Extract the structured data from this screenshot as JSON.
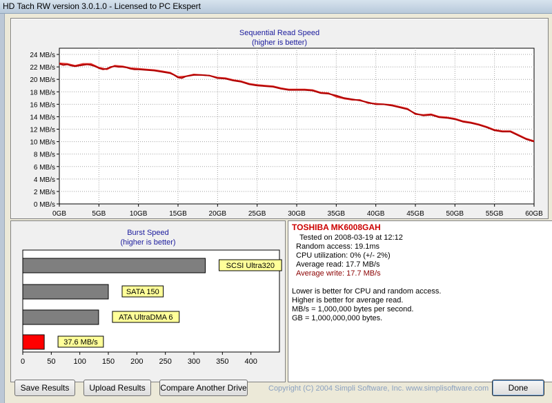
{
  "window": {
    "title": "HD Tach RW version 3.0.1.0 - Licensed to PC Ekspert"
  },
  "colors": {
    "read_line": "#b00000",
    "write_line": "#e0302a",
    "burst_gray": "#7f7f7f",
    "burst_highlight": "#ff0000",
    "label_bg": "#ffff99",
    "title_blue": "#1a1a9c",
    "drive_red": "#cc0000",
    "write_text": "#8b0000"
  },
  "seq_chart": {
    "title": "Sequential Read Speed",
    "subtitle": "(higher is better)"
  },
  "burst_chart": {
    "title": "Burst Speed",
    "subtitle": "(higher is better)"
  },
  "info": {
    "drive": "TOSHIBA MK6008GAH",
    "tested": "Tested on 2008-03-19 at 12:12",
    "random_access": "Random access: 19.1ms",
    "cpu": "CPU utilization: 0% (+/- 2%)",
    "avg_read": "Average read: 17.7 MB/s",
    "avg_write": "Average write: 17.7 MB/s",
    "notes": [
      "Lower is better for CPU and random access.",
      "Higher is better for average read.",
      "MB/s = 1,000,000 bytes per second.",
      "GB = 1,000,000,000 bytes."
    ]
  },
  "buttons": {
    "save": "Save Results",
    "upload": "Upload Results",
    "compare": "Compare Another Drive",
    "done": "Done"
  },
  "copyright": "Copyright (C) 2004 Simpli Software, Inc. www.simplisoftware.com",
  "chart_data": [
    {
      "type": "line",
      "title": "Sequential Read Speed",
      "subtitle": "(higher is better)",
      "xlabel": "",
      "ylabel": "",
      "xlim": [
        0,
        60
      ],
      "ylim": [
        0,
        25
      ],
      "x_ticks": [
        "0GB",
        "5GB",
        "10GB",
        "15GB",
        "20GB",
        "25GB",
        "30GB",
        "35GB",
        "40GB",
        "45GB",
        "50GB",
        "55GB",
        "60GB"
      ],
      "y_ticks": [
        "0 MB/s",
        "2 MB/s",
        "4 MB/s",
        "6 MB/s",
        "8 MB/s",
        "10 MB/s",
        "12 MB/s",
        "14 MB/s",
        "16 MB/s",
        "18 MB/s",
        "20 MB/s",
        "22 MB/s",
        "24 MB/s"
      ],
      "grid": true,
      "series": [
        {
          "name": "read",
          "x": [
            0,
            0.5,
            1,
            1.5,
            2,
            2.5,
            3,
            3.5,
            4,
            4.5,
            5,
            5.5,
            6,
            6.5,
            7,
            7.5,
            8,
            8.5,
            9,
            9.5,
            10,
            11,
            12,
            13,
            14,
            14.5,
            15,
            15.5,
            16,
            17,
            18,
            19,
            20,
            21,
            22,
            23,
            24,
            25,
            26,
            27,
            28,
            29,
            30,
            31,
            32,
            33,
            34,
            35,
            36,
            37,
            38,
            39,
            40,
            41,
            42,
            43,
            44,
            45,
            46,
            47,
            48,
            49,
            50,
            51,
            52,
            53,
            54,
            55,
            56,
            57,
            58,
            59,
            60
          ],
          "y": [
            22.5,
            22.3,
            22.4,
            22.2,
            22.1,
            22.2,
            22.3,
            22.4,
            22.3,
            22.1,
            21.8,
            21.6,
            21.7,
            22.0,
            22.1,
            22.0,
            22.0,
            21.9,
            21.7,
            21.6,
            21.6,
            21.5,
            21.4,
            21.2,
            21.0,
            20.7,
            20.3,
            20.2,
            20.5,
            20.7,
            20.7,
            20.6,
            20.2,
            20.1,
            19.8,
            19.6,
            19.2,
            19.0,
            18.9,
            18.8,
            18.5,
            18.3,
            18.3,
            18.3,
            18.2,
            17.8,
            17.7,
            17.4,
            17.0,
            16.8,
            16.6,
            16.3,
            16.0,
            16.0,
            15.8,
            15.5,
            15.2,
            14.5,
            14.2,
            14.3,
            13.9,
            13.8,
            13.6,
            13.2,
            13.0,
            12.7,
            12.3,
            11.8,
            11.6,
            11.6,
            11.0,
            10.4,
            10.0
          ]
        },
        {
          "name": "write",
          "x": [
            0,
            1,
            2,
            3,
            4,
            5,
            6,
            7,
            8,
            9,
            10,
            11,
            12,
            13,
            14,
            15,
            16,
            17,
            18,
            19,
            20,
            21,
            22,
            23,
            24,
            25,
            26,
            27,
            28,
            29,
            30,
            31,
            32,
            33,
            34,
            35,
            36,
            37,
            38,
            39,
            40,
            41,
            42,
            43,
            44,
            45,
            46,
            47,
            48,
            49,
            50,
            51,
            52,
            53,
            54,
            55,
            56,
            57,
            58,
            59,
            60
          ],
          "y": [
            22.6,
            22.5,
            22.2,
            22.5,
            22.5,
            21.9,
            21.6,
            22.2,
            22.1,
            21.8,
            21.7,
            21.6,
            21.5,
            21.3,
            21.1,
            20.4,
            20.5,
            20.8,
            20.7,
            20.6,
            20.3,
            20.2,
            19.9,
            19.7,
            19.3,
            19.1,
            19.0,
            18.9,
            18.6,
            18.4,
            18.4,
            18.4,
            18.3,
            17.9,
            17.8,
            17.2,
            16.9,
            16.7,
            16.7,
            16.2,
            16.1,
            16.0,
            15.9,
            15.6,
            15.3,
            14.4,
            14.3,
            14.4,
            14.0,
            13.9,
            13.7,
            13.3,
            13.1,
            12.8,
            12.4,
            11.9,
            11.7,
            11.7,
            11.1,
            10.5,
            10.1
          ]
        }
      ]
    },
    {
      "type": "bar",
      "orientation": "horizontal",
      "title": "Burst Speed",
      "subtitle": "(higher is better)",
      "xlim": [
        0,
        450
      ],
      "x_ticks": [
        "0",
        "50",
        "100",
        "150",
        "200",
        "250",
        "300",
        "350",
        "400"
      ],
      "categories": [
        "SCSI Ultra320",
        "SATA 150",
        "ATA UltraDMA 6",
        "37.6 MB/s"
      ],
      "values": [
        320,
        150,
        133,
        37.6
      ],
      "highlight": [
        false,
        false,
        false,
        true
      ],
      "grid": false
    }
  ]
}
